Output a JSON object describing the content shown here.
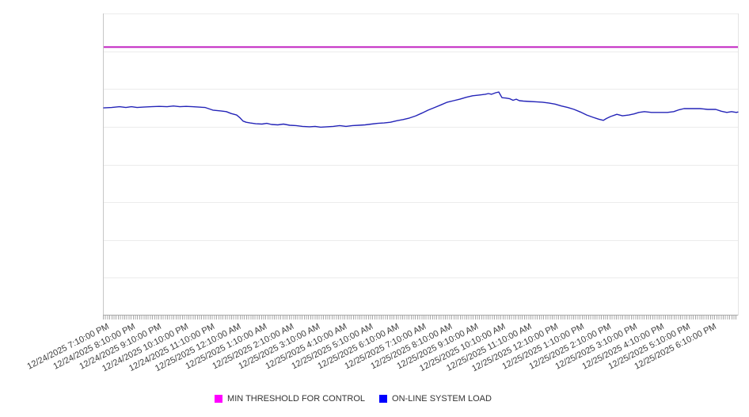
{
  "chart_data": {
    "type": "line",
    "title": "",
    "legend_position": "bottom",
    "x_axis": {
      "hours_span": 24,
      "gridlines": false,
      "labels": [
        "12/24/2025 7:10:00 PM",
        "12/24/2025 8:10:00 PM",
        "12/24/2025 9:10:00 PM",
        "12/24/2025 10:10:00 PM",
        "12/24/2025 11:10:00 PM",
        "12/25/2025 12:10:00 AM",
        "12/25/2025 1:10:00 AM",
        "12/25/2025 2:10:00 AM",
        "12/25/2025 3:10:00 AM",
        "12/25/2025 4:10:00 AM",
        "12/25/2025 5:10:00 AM",
        "12/25/2025 6:10:00 AM",
        "12/25/2025 7:10:00 AM",
        "12/25/2025 8:10:00 AM",
        "12/25/2025 9:10:00 AM",
        "12/25/2025 10:10:00 AM",
        "12/25/2025 11:10:00 AM",
        "12/25/2025 12:10:00 PM",
        "12/25/2025 1:10:00 PM",
        "12/25/2025 2:10:00 PM",
        "12/25/2025 3:10:00 PM",
        "12/25/2025 4:10:00 PM",
        "12/25/2025 5:10:00 PM",
        "12/25/2025 6:10:00 PM"
      ]
    },
    "y_axis": {
      "min": 0,
      "max": 8,
      "gridlines": true,
      "tick_labels_visible": false
    },
    "colors": {
      "gridline": "#ececec",
      "axis_line": "#a9a9a9",
      "tick": "#a9a9a9",
      "label_text": "#3d3d3d",
      "legend_text": "#333333",
      "background": "#ffffff"
    },
    "series": [
      {
        "name": "MIN THRESHOLD FOR CONTROL",
        "type": "hline",
        "value": 7.11,
        "color": "#ff00ff",
        "line_color": "#c020c0"
      },
      {
        "name": "ON-LINE SYSTEM LOAD",
        "type": "line",
        "color": "#0000ff",
        "line_color": "#2424b8",
        "points": [
          [
            0,
            5.5
          ],
          [
            0.3,
            5.51
          ],
          [
            0.6,
            5.53
          ],
          [
            0.84,
            5.51
          ],
          [
            1.05,
            5.53
          ],
          [
            1.26,
            5.51
          ],
          [
            1.5,
            5.52
          ],
          [
            1.8,
            5.53
          ],
          [
            2.1,
            5.54
          ],
          [
            2.4,
            5.53
          ],
          [
            2.64,
            5.55
          ],
          [
            2.88,
            5.53
          ],
          [
            3.12,
            5.54
          ],
          [
            3.36,
            5.53
          ],
          [
            3.6,
            5.52
          ],
          [
            3.84,
            5.51
          ],
          [
            4.13,
            5.44
          ],
          [
            4.43,
            5.42
          ],
          [
            4.64,
            5.4
          ],
          [
            4.82,
            5.35
          ],
          [
            5.03,
            5.31
          ],
          [
            5.15,
            5.24
          ],
          [
            5.27,
            5.15
          ],
          [
            5.39,
            5.12
          ],
          [
            5.54,
            5.1
          ],
          [
            5.75,
            5.08
          ],
          [
            5.99,
            5.07
          ],
          [
            6.17,
            5.09
          ],
          [
            6.35,
            5.06
          ],
          [
            6.59,
            5.05
          ],
          [
            6.8,
            5.07
          ],
          [
            7.04,
            5.04
          ],
          [
            7.28,
            5.03
          ],
          [
            7.52,
            5.01
          ],
          [
            7.79,
            5.0
          ],
          [
            8,
            5.01
          ],
          [
            8.21,
            4.99
          ],
          [
            8.45,
            5.0
          ],
          [
            8.69,
            5.01
          ],
          [
            8.93,
            5.03
          ],
          [
            9.17,
            5.01
          ],
          [
            9.41,
            5.03
          ],
          [
            9.65,
            5.04
          ],
          [
            9.89,
            5.05
          ],
          [
            10.13,
            5.07
          ],
          [
            10.37,
            5.09
          ],
          [
            10.61,
            5.1
          ],
          [
            10.85,
            5.12
          ],
          [
            11.09,
            5.16
          ],
          [
            11.33,
            5.19
          ],
          [
            11.57,
            5.23
          ],
          [
            11.81,
            5.29
          ],
          [
            12.04,
            5.36
          ],
          [
            12.28,
            5.44
          ],
          [
            12.52,
            5.51
          ],
          [
            12.76,
            5.58
          ],
          [
            13,
            5.65
          ],
          [
            13.24,
            5.69
          ],
          [
            13.48,
            5.73
          ],
          [
            13.72,
            5.78
          ],
          [
            13.96,
            5.82
          ],
          [
            14.2,
            5.84
          ],
          [
            14.44,
            5.86
          ],
          [
            14.56,
            5.88
          ],
          [
            14.68,
            5.86
          ],
          [
            14.83,
            5.9
          ],
          [
            14.95,
            5.92
          ],
          [
            15.07,
            5.77
          ],
          [
            15.22,
            5.76
          ],
          [
            15.37,
            5.74
          ],
          [
            15.49,
            5.7
          ],
          [
            15.61,
            5.73
          ],
          [
            15.73,
            5.69
          ],
          [
            15.88,
            5.68
          ],
          [
            16.12,
            5.67
          ],
          [
            16.36,
            5.66
          ],
          [
            16.6,
            5.65
          ],
          [
            16.84,
            5.63
          ],
          [
            17.08,
            5.6
          ],
          [
            17.32,
            5.55
          ],
          [
            17.56,
            5.51
          ],
          [
            17.8,
            5.46
          ],
          [
            18.04,
            5.39
          ],
          [
            18.28,
            5.31
          ],
          [
            18.52,
            5.25
          ],
          [
            18.73,
            5.2
          ],
          [
            18.91,
            5.17
          ],
          [
            19.03,
            5.22
          ],
          [
            19.18,
            5.27
          ],
          [
            19.42,
            5.33
          ],
          [
            19.63,
            5.29
          ],
          [
            19.87,
            5.31
          ],
          [
            20.07,
            5.34
          ],
          [
            20.25,
            5.38
          ],
          [
            20.46,
            5.4
          ],
          [
            20.73,
            5.38
          ],
          [
            21.03,
            5.38
          ],
          [
            21.33,
            5.38
          ],
          [
            21.57,
            5.4
          ],
          [
            21.78,
            5.45
          ],
          [
            21.96,
            5.48
          ],
          [
            22.26,
            5.48
          ],
          [
            22.56,
            5.48
          ],
          [
            22.86,
            5.46
          ],
          [
            23.16,
            5.46
          ],
          [
            23.37,
            5.41
          ],
          [
            23.58,
            5.38
          ],
          [
            23.76,
            5.4
          ],
          [
            23.94,
            5.38
          ],
          [
            24,
            5.39
          ]
        ]
      }
    ]
  },
  "legend": {
    "items": [
      {
        "label": "MIN THRESHOLD FOR CONTROL",
        "swatch_color": "#ff00ff"
      },
      {
        "label": "ON-LINE SYSTEM LOAD",
        "swatch_color": "#0000ff"
      }
    ]
  }
}
